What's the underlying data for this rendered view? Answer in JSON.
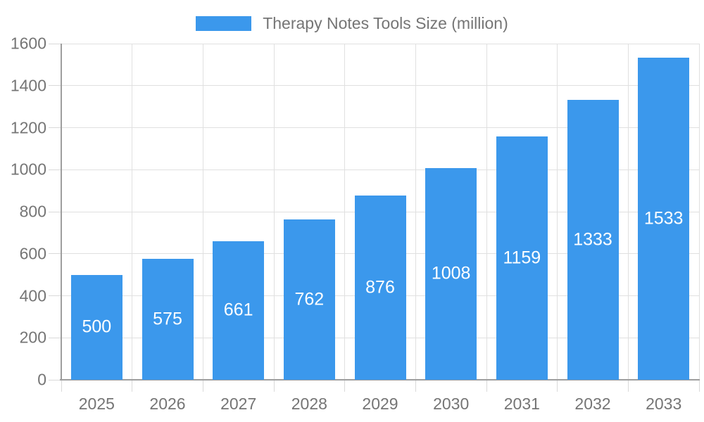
{
  "legend": {
    "label": "Therapy Notes Tools Size (million)"
  },
  "colors": {
    "bar": "#3b98ec",
    "bar_value_text": "#ffffff",
    "axis_text": "#757575",
    "axis_line": "#9e9e9e",
    "gridline": "#e0e0e0"
  },
  "chart_data": {
    "type": "bar",
    "title": "Therapy Notes Tools Size (million)",
    "categories": [
      "2025",
      "2026",
      "2027",
      "2028",
      "2029",
      "2030",
      "2031",
      "2032",
      "2033"
    ],
    "values": [
      500,
      575,
      661,
      762,
      876,
      1008,
      1159,
      1333,
      1533
    ],
    "value_labels": [
      "500",
      "575",
      "661",
      "762",
      "876",
      "1008",
      "1159",
      "1333",
      "1533"
    ],
    "ytick_labels": [
      "0",
      "200",
      "400",
      "600",
      "800",
      "1000",
      "1200",
      "1400",
      "1600"
    ],
    "yticks": [
      0,
      200,
      400,
      600,
      800,
      1000,
      1200,
      1400,
      1600
    ],
    "ylim": [
      0,
      1600
    ],
    "xlabel": "",
    "ylabel": "",
    "grid": true,
    "legend_position": "top",
    "value_labels_inside_bars": true
  }
}
